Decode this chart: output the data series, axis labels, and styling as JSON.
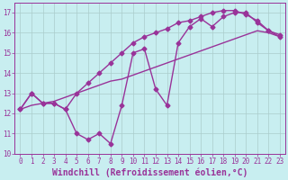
{
  "title": "",
  "xlabel": "Windchill (Refroidissement éolien,°C)",
  "ylabel": "",
  "background_color": "#c8eef0",
  "grid_color": "#aacccc",
  "line_color": "#993399",
  "xlim": [
    -0.5,
    23.5
  ],
  "ylim": [
    10,
    17.5
  ],
  "yticks": [
    10,
    11,
    12,
    13,
    14,
    15,
    16,
    17
  ],
  "xticks": [
    0,
    1,
    2,
    3,
    4,
    5,
    6,
    7,
    8,
    9,
    10,
    11,
    12,
    13,
    14,
    15,
    16,
    17,
    18,
    19,
    20,
    21,
    22,
    23
  ],
  "series1_x": [
    0,
    1,
    2,
    3,
    4,
    5,
    6,
    7,
    8,
    9,
    10,
    11,
    12,
    13,
    14,
    15,
    16,
    17,
    18,
    19,
    20,
    21,
    22,
    23
  ],
  "series1_y": [
    12.2,
    13.0,
    12.5,
    12.5,
    12.2,
    11.0,
    10.7,
    11.0,
    10.5,
    12.4,
    15.0,
    15.2,
    13.2,
    12.4,
    15.5,
    16.3,
    16.7,
    16.3,
    16.8,
    17.0,
    17.0,
    16.5,
    16.1,
    15.9
  ],
  "series2_x": [
    0,
    1,
    2,
    3,
    4,
    5,
    6,
    7,
    8,
    9,
    10,
    11,
    12,
    13,
    14,
    15,
    16,
    17,
    18,
    19,
    20,
    21,
    22,
    23
  ],
  "series2_y": [
    12.2,
    12.4,
    12.5,
    12.6,
    12.8,
    13.0,
    13.2,
    13.4,
    13.6,
    13.7,
    13.9,
    14.1,
    14.3,
    14.5,
    14.7,
    14.9,
    15.1,
    15.3,
    15.5,
    15.7,
    15.9,
    16.1,
    16.0,
    15.8
  ],
  "series3_x": [
    0,
    1,
    2,
    3,
    4,
    5,
    6,
    7,
    8,
    9,
    10,
    11,
    12,
    13,
    14,
    15,
    16,
    17,
    18,
    19,
    20,
    21,
    22,
    23
  ],
  "series3_y": [
    12.2,
    13.0,
    12.5,
    12.5,
    12.2,
    13.0,
    13.5,
    14.0,
    14.5,
    15.0,
    15.5,
    15.8,
    16.0,
    16.2,
    16.5,
    16.6,
    16.8,
    17.0,
    17.1,
    17.1,
    16.9,
    16.6,
    16.1,
    15.8
  ],
  "marker": "D",
  "markersize": 2.5,
  "linewidth": 1.0,
  "tick_fontsize": 5.5,
  "label_fontsize": 7.0
}
